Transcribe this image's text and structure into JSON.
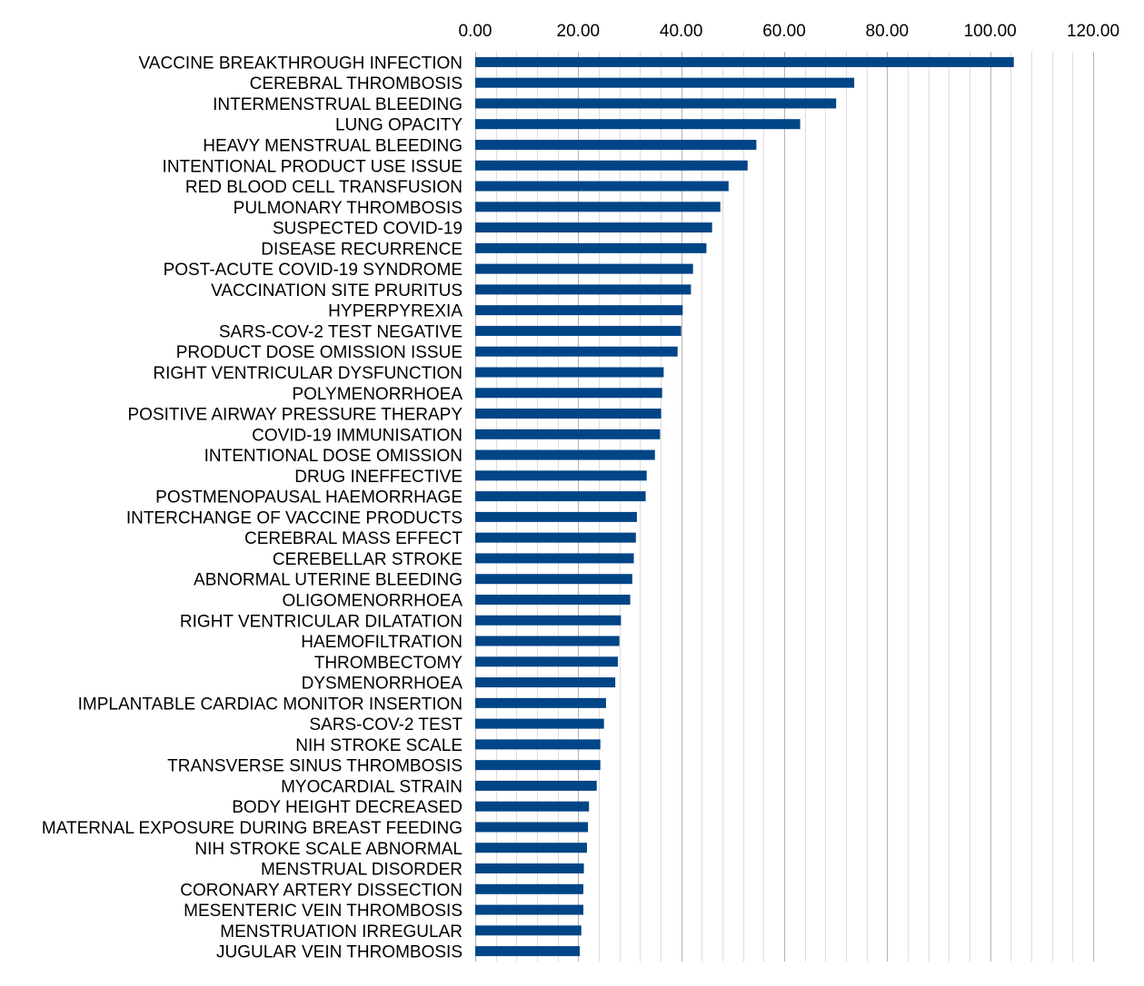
{
  "chart_data": {
    "type": "bar",
    "orientation": "horizontal",
    "title": "",
    "xlabel": "",
    "ylabel": "",
    "xlim": [
      0,
      120
    ],
    "x_ticks": [
      "0.00",
      "20.00",
      "40.00",
      "60.00",
      "80.00",
      "100.00",
      "120.00"
    ],
    "x_axis_position": "top",
    "grid": true,
    "legend": "none",
    "bar_color": "#004586",
    "categories": [
      "VACCINE BREAKTHROUGH INFECTION",
      "CEREBRAL THROMBOSIS",
      "INTERMENSTRUAL BLEEDING",
      "LUNG OPACITY",
      "HEAVY MENSTRUAL BLEEDING",
      "INTENTIONAL PRODUCT USE ISSUE",
      "RED BLOOD CELL TRANSFUSION",
      "PULMONARY THROMBOSIS",
      "SUSPECTED COVID-19",
      "DISEASE RECURRENCE",
      "POST-ACUTE COVID-19 SYNDROME",
      "VACCINATION SITE PRURITUS",
      "HYPERPYREXIA",
      "SARS-COV-2 TEST NEGATIVE",
      "PRODUCT DOSE OMISSION ISSUE",
      "RIGHT VENTRICULAR DYSFUNCTION",
      "POLYMENORRHOEA",
      "POSITIVE AIRWAY PRESSURE THERAPY",
      "COVID-19 IMMUNISATION",
      "INTENTIONAL DOSE OMISSION",
      "DRUG INEFFECTIVE",
      "POSTMENOPAUSAL HAEMORRHAGE",
      "INTERCHANGE OF VACCINE PRODUCTS",
      "CEREBRAL MASS EFFECT",
      "CEREBELLAR STROKE",
      "ABNORMAL UTERINE BLEEDING",
      "OLIGOMENORRHOEA",
      "RIGHT VENTRICULAR DILATATION",
      "HAEMOFILTRATION",
      "THROMBECTOMY",
      "DYSMENORRHOEA",
      "IMPLANTABLE CARDIAC MONITOR INSERTION",
      "SARS-COV-2 TEST",
      "NIH STROKE SCALE",
      "TRANSVERSE SINUS THROMBOSIS",
      "MYOCARDIAL STRAIN",
      "BODY HEIGHT DECREASED",
      "MATERNAL EXPOSURE DURING BREAST FEEDING",
      "NIH STROKE SCALE ABNORMAL",
      "MENSTRUAL DISORDER",
      "CORONARY ARTERY DISSECTION",
      "MESENTERIC VEIN THROMBOSIS",
      "MENSTRUATION IRREGULAR",
      "JUGULAR VEIN THROMBOSIS"
    ],
    "values": [
      104.6,
      73.6,
      70.1,
      63.1,
      54.6,
      52.9,
      49.2,
      47.6,
      46.0,
      44.9,
      42.3,
      41.9,
      40.3,
      40.0,
      39.3,
      36.6,
      36.3,
      36.1,
      35.9,
      34.9,
      33.3,
      33.1,
      31.4,
      31.2,
      30.8,
      30.5,
      30.1,
      28.3,
      28.0,
      27.7,
      27.2,
      25.4,
      25.0,
      24.3,
      24.3,
      23.6,
      22.1,
      21.9,
      21.7,
      21.1,
      21.0,
      21.0,
      20.6,
      20.3
    ]
  }
}
